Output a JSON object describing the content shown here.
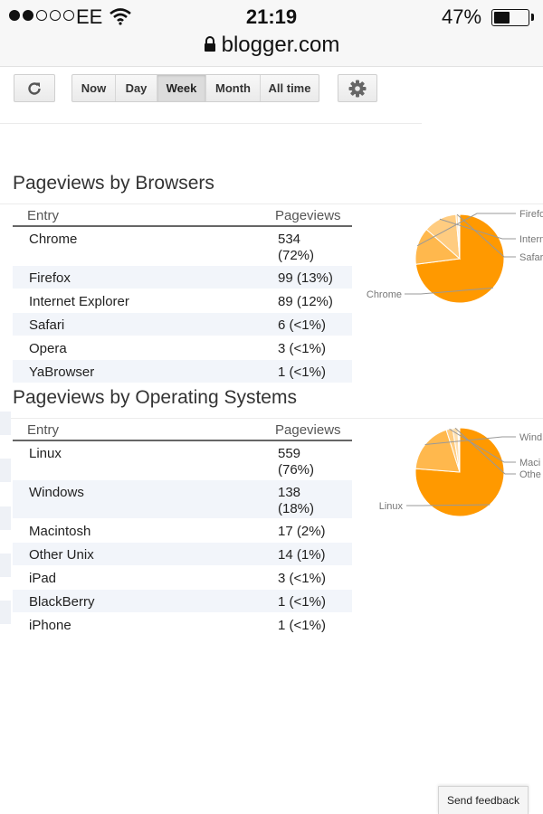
{
  "status_bar": {
    "carrier": "EE",
    "time": "21:19",
    "battery_percent": "47%",
    "battery_level": 0.47,
    "signal_bars_filled": 2,
    "signal_bars_total": 5,
    "url": "blogger.com"
  },
  "toolbar": {
    "range_options": [
      "Now",
      "Day",
      "Week",
      "Month",
      "All time"
    ],
    "selected_range": "Week"
  },
  "browsers": {
    "title": "Pageviews by Browsers",
    "col_entry": "Entry",
    "col_pageviews": "Pageviews",
    "rows": [
      {
        "entry": "Chrome",
        "pageviews": "534",
        "pct": "(72%)"
      },
      {
        "entry": "Firefox",
        "pageviews": "99 (13%)"
      },
      {
        "entry": "Internet Explorer",
        "pageviews": "89 (12%)"
      },
      {
        "entry": "Safari",
        "pageviews": "6 (<1%)"
      },
      {
        "entry": "Opera",
        "pageviews": "3 (<1%)"
      },
      {
        "entry": "YaBrowser",
        "pageviews": "1 (<1%)"
      }
    ]
  },
  "os": {
    "title": "Pageviews by Operating Systems",
    "col_entry": "Entry",
    "col_pageviews": "Pageviews",
    "rows": [
      {
        "entry": "Linux",
        "pageviews": "559",
        "pct": "(76%)"
      },
      {
        "entry": "Windows",
        "pageviews": "138",
        "pct": "(18%)"
      },
      {
        "entry": "Macintosh",
        "pageviews": "17 (2%)"
      },
      {
        "entry": "Other Unix",
        "pageviews": "14 (1%)"
      },
      {
        "entry": "iPad",
        "pageviews": "3 (<1%)"
      },
      {
        "entry": "BlackBerry",
        "pageviews": "1 (<1%)"
      },
      {
        "entry": "iPhone",
        "pageviews": "1 (<1%)"
      }
    ]
  },
  "chart_data": [
    {
      "type": "pie",
      "categories": [
        "Chrome",
        "Firefox",
        "Internet Explorer",
        "Safari",
        "Opera",
        "YaBrowser"
      ],
      "values": [
        534,
        99,
        89,
        6,
        3,
        1
      ],
      "labels_shown": [
        "Chrome",
        "Firefo",
        "Intern",
        "Safar"
      ],
      "colors": [
        "#ff9900",
        "#ffb84d",
        "#ffcc80",
        "#ffe0b0",
        "#ffe9c7",
        "#fff1dd"
      ]
    },
    {
      "type": "pie",
      "categories": [
        "Linux",
        "Windows",
        "Macintosh",
        "Other Unix",
        "iPad",
        "BlackBerry",
        "iPhone"
      ],
      "values": [
        559,
        138,
        17,
        14,
        3,
        1,
        1
      ],
      "labels_shown": [
        "Linux",
        "Wind",
        "Maci",
        "Othe"
      ],
      "colors": [
        "#ff9900",
        "#ffb84d",
        "#ffcc80",
        "#ffe0b0",
        "#ffe9c7",
        "#fff1dd",
        "#fff6ea"
      ]
    }
  ],
  "feedback": {
    "label": "Send feedback"
  }
}
